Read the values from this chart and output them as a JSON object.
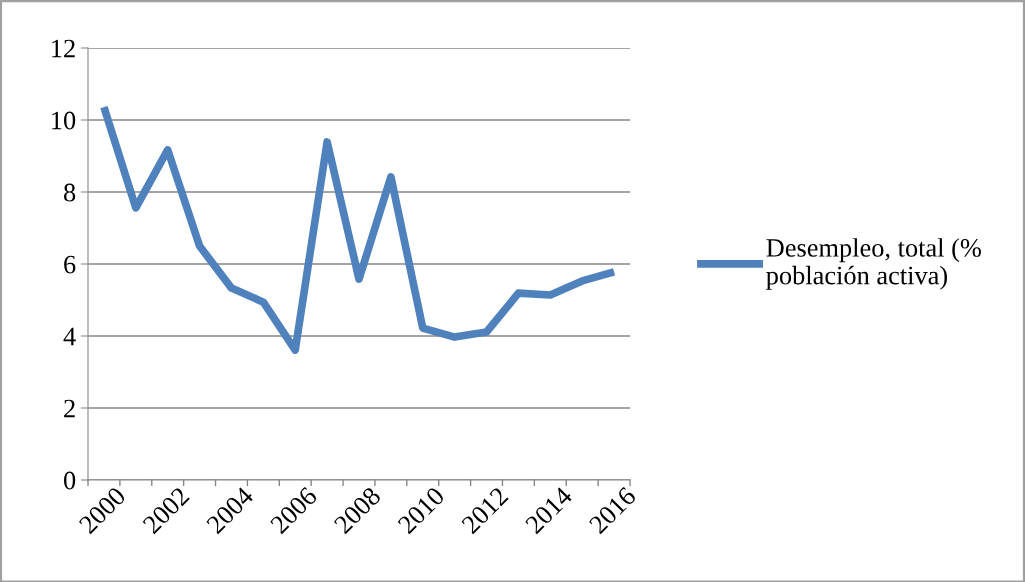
{
  "chart_data": {
    "type": "line",
    "categories": [
      "2000",
      null,
      "2002",
      null,
      "2004",
      null,
      "2006",
      null,
      "2008",
      null,
      "2010",
      null,
      "2012",
      null,
      "2014",
      null,
      "2016"
    ],
    "series": [
      {
        "name": "Desempleo, total (%\npoblación activa)",
        "color": "#4f81bd",
        "values": [
          10.36,
          7.56,
          9.17,
          6.5,
          5.33,
          4.94,
          3.61,
          9.39,
          5.58,
          8.42,
          4.22,
          3.97,
          4.11,
          5.19,
          5.14,
          5.53,
          5.78
        ]
      }
    ],
    "ylim": [
      0,
      12
    ],
    "yticks": [
      0,
      2,
      4,
      6,
      8,
      10,
      12
    ],
    "grid": "y",
    "legend": "right",
    "marker": "none",
    "line_style": "solid"
  }
}
